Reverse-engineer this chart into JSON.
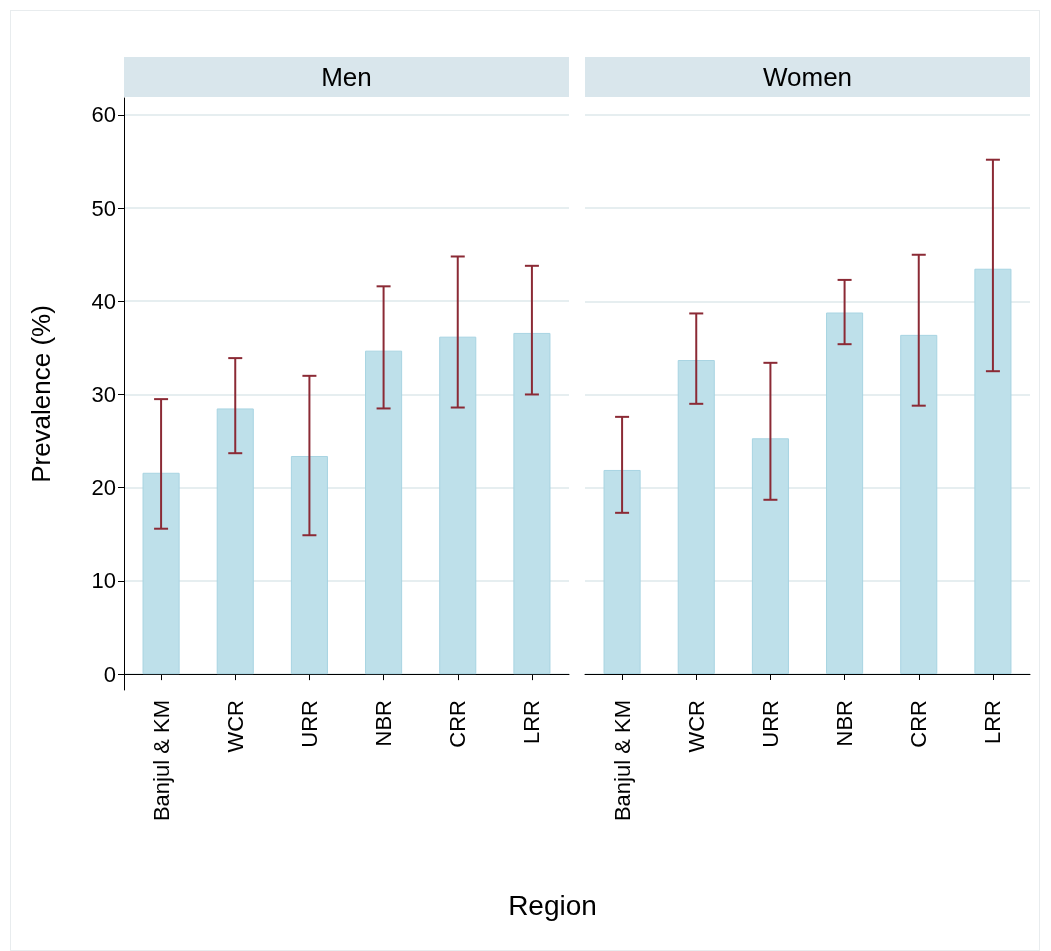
{
  "chart_data": [
    {
      "type": "bar",
      "title": "Men",
      "xlabel": "Region",
      "ylabel": "Prevalence (%)",
      "categories": [
        "Banjul & KM",
        "WCR",
        "URR",
        "NBR",
        "CRR",
        "LRR"
      ],
      "values": [
        21.6,
        28.5,
        23.4,
        34.7,
        36.2,
        36.6
      ],
      "color": "#bee0ea",
      "errors": [
        [
          15.6,
          29.5
        ],
        [
          23.7,
          33.9
        ],
        [
          14.9,
          32.0
        ],
        [
          28.5,
          41.6
        ],
        [
          28.6,
          44.8
        ],
        [
          30.0,
          43.8
        ]
      ],
      "ylim": [
        -1.7,
        61.8
      ],
      "yticks": [
        0,
        10,
        20,
        30,
        40,
        50,
        60
      ],
      "grid": "y"
    },
    {
      "type": "bar",
      "title": "Women",
      "categories": [
        "Banjul & KM",
        "WCR",
        "URR",
        "NBR",
        "CRR",
        "LRR"
      ],
      "values": [
        21.9,
        33.7,
        25.3,
        38.8,
        36.4,
        43.5
      ],
      "color": "#bee0ea",
      "errors": [
        [
          17.3,
          27.6
        ],
        [
          29.0,
          38.7
        ],
        [
          18.7,
          33.4
        ],
        [
          35.4,
          42.3
        ],
        [
          28.8,
          45.0
        ],
        [
          32.5,
          55.2
        ]
      ],
      "ylim": [
        0,
        60
      ],
      "yticks": [
        0,
        10,
        20,
        30,
        40,
        50,
        60
      ],
      "grid": "y",
      "tick_labels": "x"
    }
  ]
}
